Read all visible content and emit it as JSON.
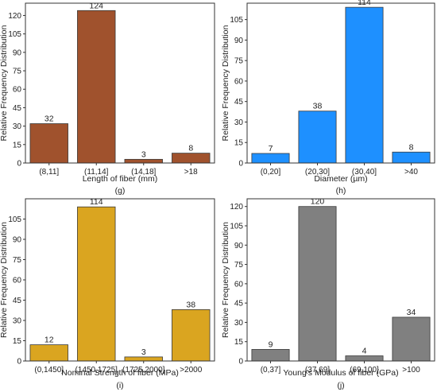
{
  "chart_data": [
    {
      "type": "bar",
      "categories": [
        "(8,11]",
        "(11,14]",
        "(14,18]",
        ">18"
      ],
      "values": [
        32,
        124,
        3,
        8
      ],
      "data_labels": [
        "32",
        "124",
        "3",
        "8"
      ],
      "xlabel": "Length of fiber (mm)",
      "ylabel": "Relative Frequency Distribution",
      "caption": "(g)",
      "ylim": [
        0,
        130
      ],
      "yticks": [
        "0",
        "15",
        "30",
        "45",
        "60",
        "75",
        "90",
        "105",
        "120"
      ],
      "color": "#A0522D",
      "grid": false
    },
    {
      "type": "bar",
      "categories": [
        "(0,20]",
        "(20,30]",
        "(30,40]",
        ">40"
      ],
      "values": [
        7,
        38,
        114,
        8
      ],
      "data_labels": [
        "7",
        "38",
        "114",
        "8"
      ],
      "xlabel": "Diameter (µm)",
      "ylabel": "Relative Frequency Distribution",
      "caption": "(h)",
      "ylim": [
        0,
        117
      ],
      "yticks": [
        "0",
        "15",
        "30",
        "45",
        "60",
        "75",
        "90",
        "105"
      ],
      "color": "#1E90FF",
      "grid": false
    },
    {
      "type": "bar",
      "categories": [
        "(0,1450]",
        "(1450,1725]",
        "(1725,2000]",
        ">2000"
      ],
      "values": [
        12,
        114,
        3,
        38
      ],
      "data_labels": [
        "12",
        "114",
        "3",
        "38"
      ],
      "xlabel": "Nominal Strength of fiber (MPa)",
      "ylabel": "Relative Frequency Distribution",
      "caption": "(i)",
      "ylim": [
        0,
        120
      ],
      "yticks": [
        "0",
        "15",
        "30",
        "45",
        "60",
        "75",
        "90",
        "105"
      ],
      "color": "#DAA520",
      "grid": false
    },
    {
      "type": "bar",
      "categories": [
        "(0,37]",
        "(37,69]",
        "(69,100]",
        ">100"
      ],
      "values": [
        9,
        120,
        4,
        34
      ],
      "data_labels": [
        "9",
        "120",
        "4",
        "34"
      ],
      "xlabel": "Young's Modulus of fiber (GPa)",
      "ylabel": "Relative Frequency Distribution",
      "caption": "(j)",
      "ylim": [
        0,
        126
      ],
      "yticks": [
        "0",
        "15",
        "30",
        "45",
        "60",
        "75",
        "90",
        "105",
        "120"
      ],
      "color": "#808080",
      "grid": false
    }
  ]
}
